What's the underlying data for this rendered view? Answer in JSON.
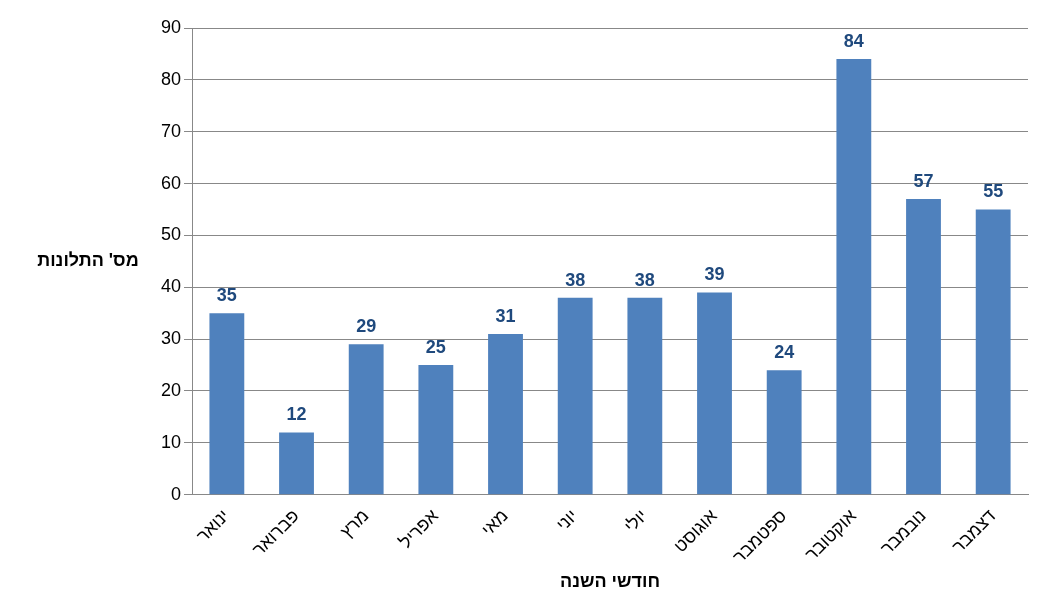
{
  "chart_data": {
    "type": "bar",
    "xlabel": "חודשי השנה",
    "ylabel": "מס' התלונות",
    "categories": [
      "ינואר",
      "פברואר",
      "מרץ",
      "אפריל",
      "מאי",
      "יוני",
      "יולי",
      "אוגוסט",
      "ספטמבר",
      "אוקטובר",
      "נובמבר",
      "דצמבר"
    ],
    "values": [
      35,
      12,
      29,
      25,
      31,
      38,
      38,
      39,
      24,
      84,
      57,
      55
    ],
    "color": "#4f81bd",
    "ylim": [
      0,
      90
    ],
    "yticks": [
      0,
      10,
      20,
      30,
      40,
      50,
      60,
      70,
      80,
      90
    ],
    "grid": "y",
    "data_labels": true,
    "legend": false
  }
}
